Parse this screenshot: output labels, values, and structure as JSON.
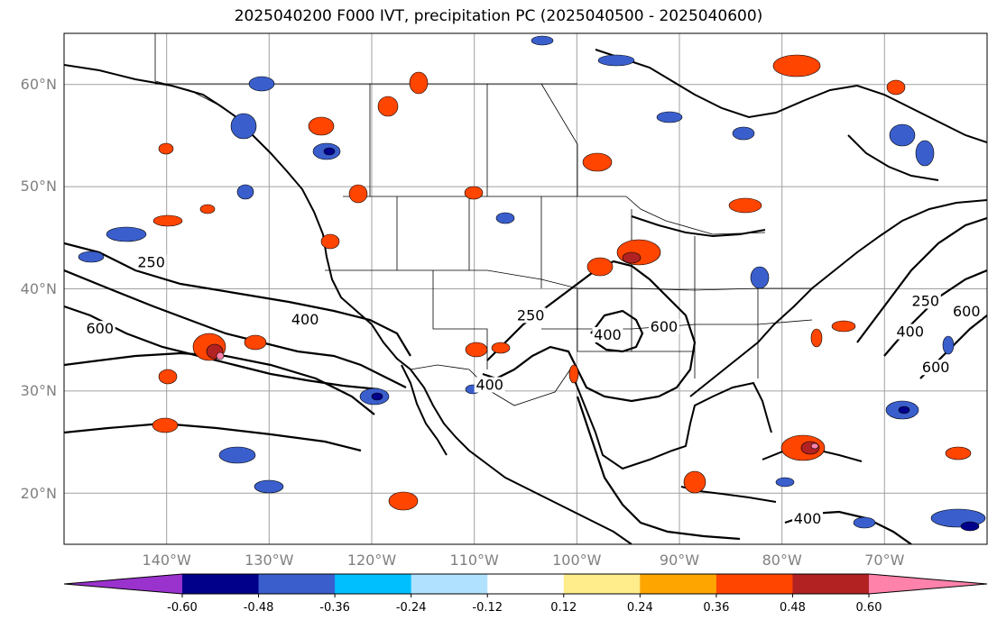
{
  "title": "2025040200 F000 IVT, precipitation PC (2025040500 - 2025040600)",
  "lat_labels": [
    "60°N",
    "50°N",
    "40°N",
    "30°N",
    "20°N"
  ],
  "lon_labels": [
    "140°W",
    "130°W",
    "120°W",
    "110°W",
    "100°W",
    "90°W",
    "80°W",
    "70°W"
  ],
  "map_extent": {
    "lon": [
      -150,
      -60
    ],
    "lat": [
      15,
      65
    ]
  },
  "colorbar": {
    "ticks": [
      "-0.60",
      "-0.48",
      "-0.36",
      "-0.24",
      "-0.12",
      "0.12",
      "0.24",
      "0.36",
      "0.48",
      "0.60"
    ],
    "colors": [
      "#9a32cd",
      "#00008b",
      "#3a5fcd",
      "#00bfff",
      "#b0e2ff",
      "#ffffff",
      "#ffec8b",
      "#ffa500",
      "#ff4500",
      "#b22222",
      "#ff82ab",
      "#ff82ab"
    ]
  },
  "ivt_contour_labels": [
    {
      "text": "250",
      "lon": -141.5,
      "lat": 42.3
    },
    {
      "text": "600",
      "lon": -146.5,
      "lat": 35.8
    },
    {
      "text": "400",
      "lon": -126.5,
      "lat": 36.7
    },
    {
      "text": "250",
      "lon": -104.5,
      "lat": 37.1
    },
    {
      "text": "400",
      "lon": -108.5,
      "lat": 30.3
    },
    {
      "text": "400",
      "lon": -97.0,
      "lat": 35.2
    },
    {
      "text": "600",
      "lon": -91.5,
      "lat": 36.0
    },
    {
      "text": "250",
      "lon": -66.0,
      "lat": 38.5
    },
    {
      "text": "400",
      "lon": -67.5,
      "lat": 35.5
    },
    {
      "text": "600",
      "lon": -62.0,
      "lat": 37.5
    },
    {
      "text": "600",
      "lon": -65.0,
      "lat": 32.0
    },
    {
      "text": "400",
      "lon": -77.5,
      "lat": 17.2
    }
  ]
}
